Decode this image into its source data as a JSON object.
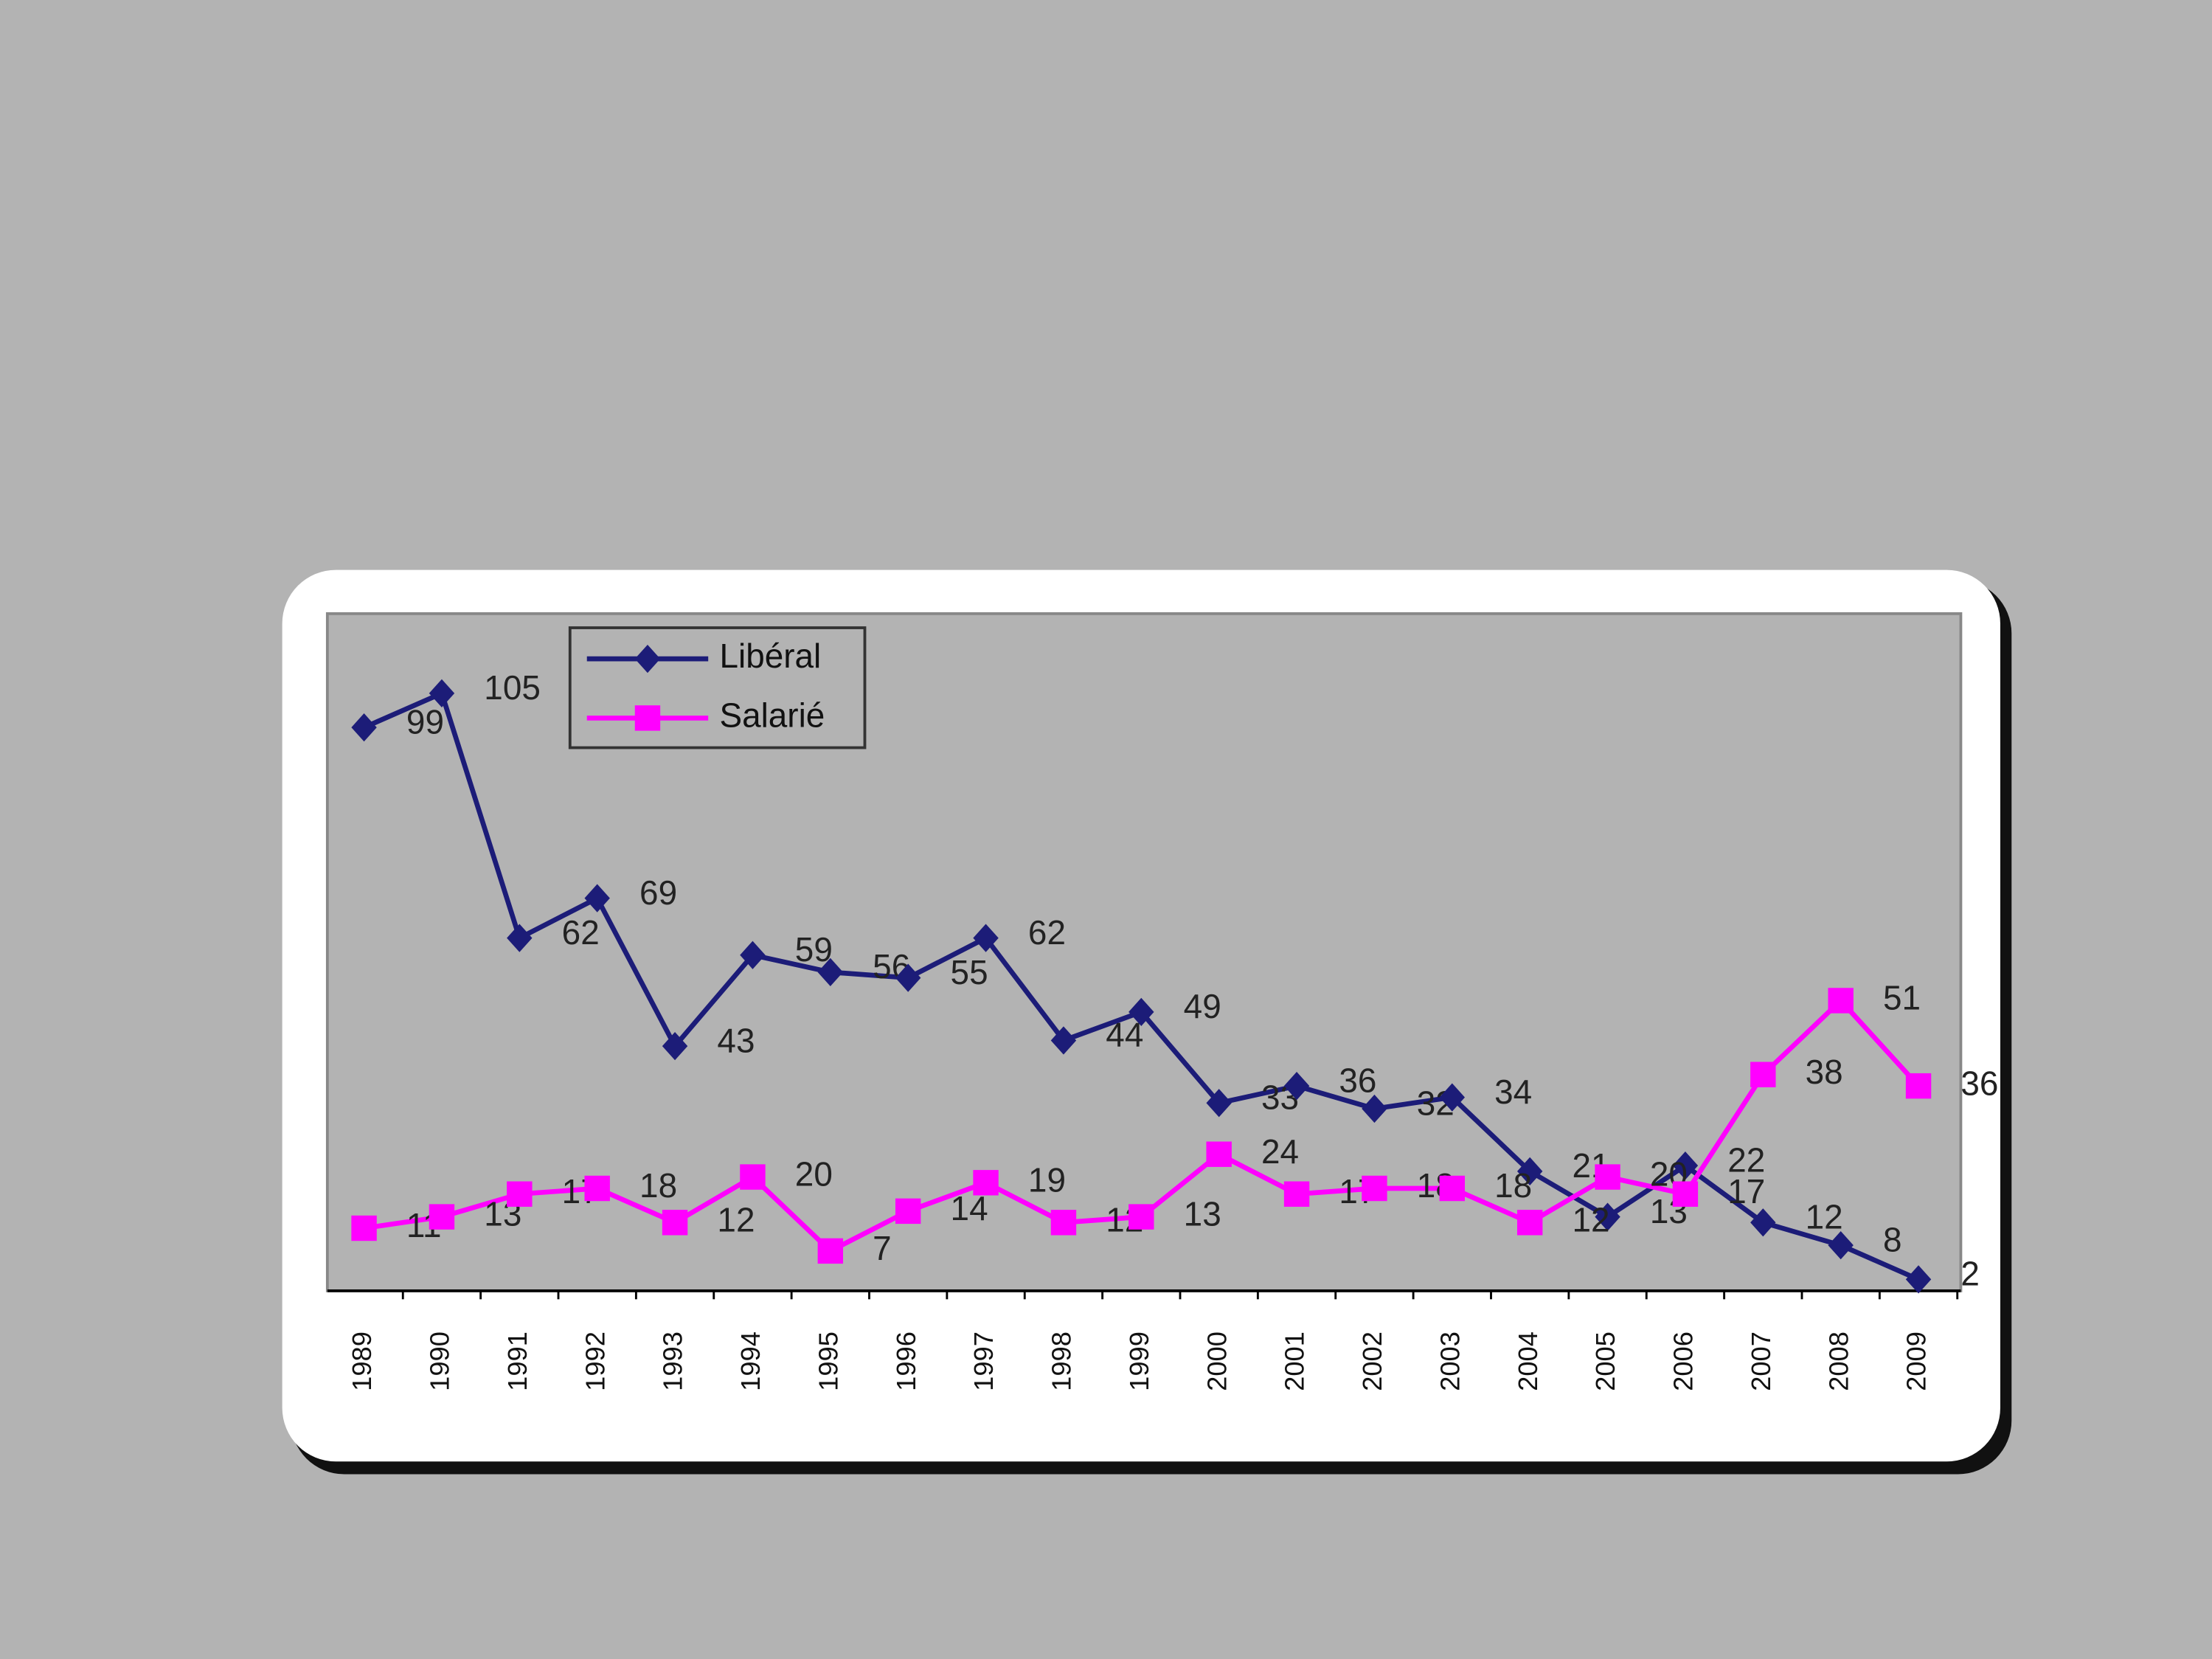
{
  "chart_data": {
    "type": "line",
    "categories": [
      "1989",
      "1990",
      "1991",
      "1992",
      "1993",
      "1994",
      "1995",
      "1996",
      "1997",
      "1998",
      "1999",
      "2000",
      "2001",
      "2002",
      "2003",
      "2004",
      "2005",
      "2006",
      "2007",
      "2008",
      "2009"
    ],
    "series": [
      {
        "name": "Libéral",
        "color": "#1c1c78",
        "marker": "diamond",
        "values": [
          99,
          105,
          62,
          69,
          43,
          59,
          56,
          55,
          62,
          44,
          49,
          33,
          36,
          32,
          34,
          21,
          13,
          22,
          12,
          8,
          2
        ]
      },
      {
        "name": "Salarié",
        "color": "#ff00ff",
        "marker": "square",
        "values": [
          11,
          13,
          17,
          18,
          12,
          20,
          7,
          14,
          19,
          12,
          13,
          24,
          17,
          18,
          18,
          12,
          20,
          17,
          38,
          51,
          36
        ]
      }
    ],
    "ylim": [
      0,
      119
    ],
    "legend": "top-left"
  }
}
